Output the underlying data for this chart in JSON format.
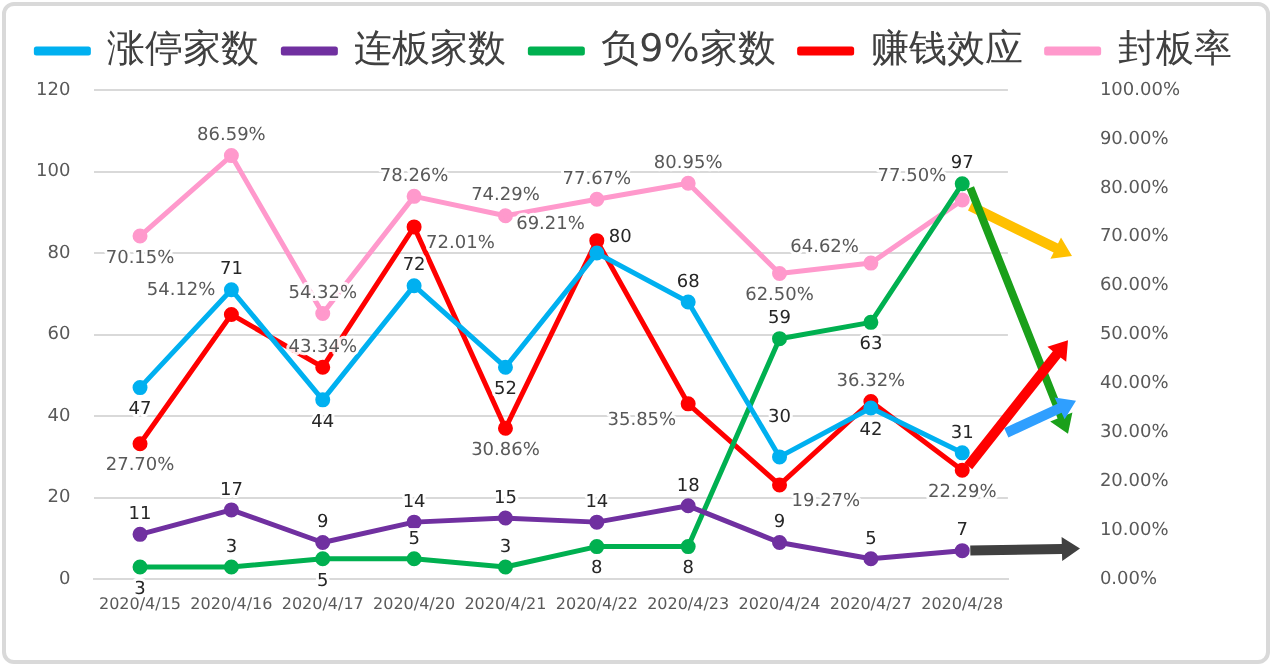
{
  "chart_data": {
    "type": "line",
    "categories": [
      "2020/4/15",
      "2020/4/16",
      "2020/4/17",
      "2020/4/20",
      "2020/4/21",
      "2020/4/22",
      "2020/4/23",
      "2020/4/24",
      "2020/4/27",
      "2020/4/28"
    ],
    "series": [
      {
        "name": "涨停家数",
        "color": "#00b0f0",
        "values": [
          47,
          71,
          44,
          72,
          52,
          80,
          68,
          30,
          42,
          31
        ],
        "value_labels": [
          "47",
          "71",
          "44",
          "72",
          "52",
          "80",
          "68",
          "30",
          "42",
          "31"
        ]
      },
      {
        "name": "连板家数",
        "color": "#7030a0",
        "values": [
          11,
          17,
          9,
          14,
          15,
          14,
          18,
          9,
          5,
          7
        ],
        "value_labels": [
          "11",
          "17",
          "9",
          "14",
          "15",
          "14",
          "18",
          "9",
          "5",
          "7"
        ]
      },
      {
        "name": "负9%家数",
        "color": "#00b050",
        "values": [
          3,
          3,
          5,
          5,
          3,
          8,
          8,
          59,
          63,
          97
        ],
        "value_labels": [
          "3",
          "3",
          "5",
          "5",
          "3",
          "8",
          "8",
          "59",
          "63",
          "97"
        ]
      },
      {
        "name": "赚钱效应",
        "color": "#ff0000",
        "axis": "y2",
        "values": [
          27.7,
          54.12,
          43.34,
          72.01,
          30.86,
          69.21,
          35.85,
          19.27,
          36.32,
          22.29
        ],
        "value_labels": [
          "27.70%",
          "54.12%",
          "43.34%",
          "72.01%",
          "30.86%",
          "69.21%",
          "35.85%",
          "19.27%",
          "36.32%",
          "22.29%"
        ]
      },
      {
        "name": "封板率",
        "color": "#ff99cc",
        "axis": "y2",
        "values": [
          70.15,
          86.59,
          54.32,
          78.26,
          74.29,
          77.67,
          80.95,
          62.5,
          64.62,
          77.5
        ],
        "value_labels": [
          "70.15%",
          "86.59%",
          "54.32%",
          "78.26%",
          "74.29%",
          "77.67%",
          "80.95%",
          "62.50%",
          "64.62%",
          "77.50%"
        ]
      }
    ],
    "ylim": [
      0,
      120
    ],
    "yticks": [
      0,
      20,
      40,
      60,
      80,
      100,
      120
    ],
    "y2lim": [
      0,
      100
    ],
    "y2ticks": [
      {
        "value": 0,
        "label": "0.00%"
      },
      {
        "value": 10,
        "label": "10.00%"
      },
      {
        "value": 20,
        "label": "20.00%"
      },
      {
        "value": 30,
        "label": "30.00%"
      },
      {
        "value": 40,
        "label": "40.00%"
      },
      {
        "value": 50,
        "label": "50.00%"
      },
      {
        "value": 60,
        "label": "60.00%"
      },
      {
        "value": 70,
        "label": "70.00%"
      },
      {
        "value": 80,
        "label": "80.00%"
      },
      {
        "value": 90,
        "label": "90.00%"
      },
      {
        "value": 100,
        "label": "100.00%"
      }
    ],
    "grid": "y",
    "legend": "top",
    "marker": "circle",
    "line_style": "solid"
  }
}
